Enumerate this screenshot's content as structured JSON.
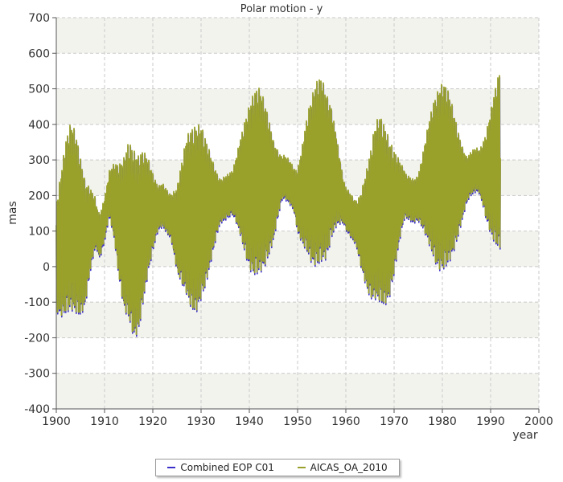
{
  "chart_data": {
    "type": "line",
    "title": "Polar motion - y",
    "xlabel": "year",
    "ylabel": "mas",
    "xlim": [
      1900,
      2000
    ],
    "ylim": [
      -400,
      700
    ],
    "x_ticks": [
      1900,
      1910,
      1920,
      1930,
      1940,
      1950,
      1960,
      1970,
      1980,
      1990,
      2000
    ],
    "y_ticks": [
      -400,
      -300,
      -200,
      -100,
      0,
      100,
      200,
      300,
      400,
      500,
      600,
      700
    ],
    "grid": true,
    "legend_position": "bottom",
    "series": [
      {
        "name": "Combined EOP C01",
        "color": "#3a2fc9",
        "x": [
          1900,
          1901,
          1902,
          1903,
          1904,
          1905,
          1906,
          1907,
          1908,
          1909,
          1910,
          1911,
          1912,
          1913,
          1914,
          1915,
          1916,
          1917,
          1918,
          1919,
          1920,
          1921,
          1922,
          1923,
          1924,
          1925,
          1926,
          1927,
          1928,
          1929,
          1930,
          1931,
          1932,
          1933,
          1934,
          1935,
          1936,
          1937,
          1938,
          1939,
          1940,
          1941,
          1942,
          1943,
          1944,
          1945,
          1946,
          1947,
          1948,
          1949,
          1950,
          1951,
          1952,
          1953,
          1954,
          1955,
          1956,
          1957,
          1958,
          1959,
          1960,
          1961,
          1962,
          1963,
          1964,
          1965,
          1966,
          1967,
          1968,
          1969,
          1970,
          1971,
          1972,
          1973,
          1974,
          1975,
          1976,
          1977,
          1978,
          1979,
          1980,
          1981,
          1982,
          1983,
          1984,
          1985,
          1986,
          1987,
          1988,
          1989,
          1990,
          1991,
          1992
        ],
        "y": [
          20,
          60,
          110,
          140,
          120,
          80,
          60,
          100,
          120,
          80,
          130,
          200,
          180,
          120,
          90,
          100,
          60,
          60,
          110,
          140,
          150,
          160,
          170,
          150,
          130,
          100,
          120,
          140,
          130,
          130,
          150,
          150,
          160,
          170,
          180,
          190,
          200,
          210,
          220,
          220,
          220,
          230,
          240,
          230,
          220,
          210,
          230,
          250,
          240,
          220,
          180,
          200,
          230,
          240,
          260,
          270,
          250,
          260,
          240,
          200,
          160,
          140,
          120,
          100,
          100,
          110,
          150,
          160,
          140,
          130,
          150,
          180,
          200,
          190,
          180,
          190,
          210,
          230,
          240,
          240,
          250,
          250,
          240,
          230,
          230,
          240,
          260,
          270,
          260,
          250,
          260,
          280,
          300
        ]
      },
      {
        "name": "AICAS_OA_2010",
        "color": "#9aa12b",
        "x": [
          1900,
          1901,
          1902,
          1903,
          1904,
          1905,
          1906,
          1907,
          1908,
          1909,
          1910,
          1911,
          1912,
          1913,
          1914,
          1915,
          1916,
          1917,
          1918,
          1919,
          1920,
          1921,
          1922,
          1923,
          1924,
          1925,
          1926,
          1927,
          1928,
          1929,
          1930,
          1931,
          1932,
          1933,
          1934,
          1935,
          1936,
          1937,
          1938,
          1939,
          1940,
          1941,
          1942,
          1943,
          1944,
          1945,
          1946,
          1947,
          1948,
          1949,
          1950,
          1951,
          1952,
          1953,
          1954,
          1955,
          1956,
          1957,
          1958,
          1959,
          1960,
          1961,
          1962,
          1963,
          1964,
          1965,
          1966,
          1967,
          1968,
          1969,
          1970,
          1971,
          1972,
          1973,
          1974,
          1975,
          1976,
          1977,
          1978,
          1979,
          1980,
          1981,
          1982,
          1983,
          1984,
          1985,
          1986,
          1987,
          1988,
          1989,
          1990,
          1991,
          1992
        ],
        "y": [
          25,
          65,
          115,
          145,
          125,
          85,
          65,
          105,
          125,
          85,
          135,
          205,
          185,
          125,
          95,
          105,
          65,
          65,
          115,
          145,
          155,
          165,
          175,
          155,
          135,
          105,
          125,
          145,
          135,
          135,
          155,
          155,
          165,
          175,
          185,
          195,
          205,
          215,
          225,
          225,
          225,
          235,
          245,
          235,
          225,
          215,
          235,
          255,
          245,
          225,
          185,
          205,
          235,
          245,
          265,
          275,
          255,
          265,
          245,
          205,
          165,
          145,
          125,
          105,
          105,
          115,
          155,
          165,
          145,
          135,
          155,
          185,
          205,
          195,
          185,
          195,
          215,
          235,
          245,
          245,
          255,
          255,
          245,
          235,
          235,
          245,
          265,
          275,
          265,
          255,
          265,
          285,
          305
        ]
      }
    ]
  }
}
